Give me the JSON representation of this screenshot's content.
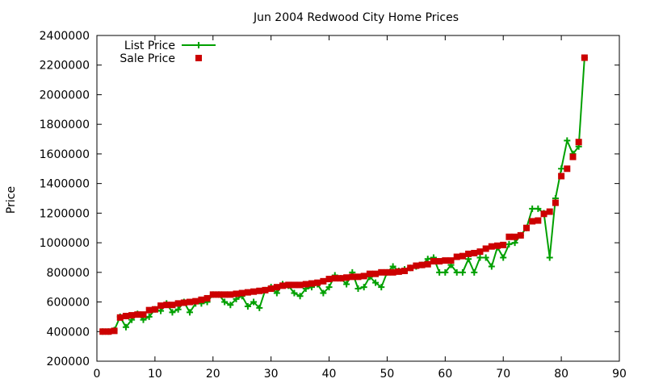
{
  "chart_data": {
    "type": "line",
    "title": "Jun 2004 Redwood City Home Prices",
    "xlabel": "",
    "ylabel": "Price",
    "xlim": [
      0,
      90
    ],
    "ylim": [
      200000,
      2400000
    ],
    "xticks": [
      0,
      10,
      20,
      30,
      40,
      50,
      60,
      70,
      80,
      90
    ],
    "yticks": [
      200000,
      400000,
      600000,
      800000,
      1000000,
      1200000,
      1400000,
      1600000,
      1800000,
      2000000,
      2200000,
      2400000
    ],
    "grid": false,
    "legend_position": "top-left",
    "x": [
      1,
      2,
      3,
      4,
      5,
      6,
      7,
      8,
      9,
      10,
      11,
      12,
      13,
      14,
      15,
      16,
      17,
      18,
      19,
      20,
      21,
      22,
      23,
      24,
      25,
      26,
      27,
      28,
      29,
      30,
      31,
      32,
      33,
      34,
      35,
      36,
      37,
      38,
      39,
      40,
      41,
      42,
      43,
      44,
      45,
      46,
      47,
      48,
      49,
      50,
      51,
      52,
      53,
      54,
      55,
      56,
      57,
      58,
      59,
      60,
      61,
      62,
      63,
      64,
      65,
      66,
      67,
      68,
      69,
      70,
      71,
      72,
      73,
      74,
      75,
      76,
      77,
      78,
      79,
      80,
      81,
      82,
      83,
      84
    ],
    "series": [
      {
        "name": "List Price",
        "color": "#00a000",
        "marker": "plus",
        "values": [
          400000,
          400000,
          410000,
          500000,
          430000,
          480000,
          520000,
          480000,
          500000,
          550000,
          540000,
          590000,
          530000,
          550000,
          600000,
          530000,
          590000,
          590000,
          600000,
          650000,
          650000,
          600000,
          580000,
          620000,
          640000,
          570000,
          600000,
          560000,
          680000,
          700000,
          660000,
          720000,
          710000,
          660000,
          640000,
          690000,
          700000,
          720000,
          660000,
          700000,
          780000,
          760000,
          720000,
          800000,
          690000,
          700000,
          770000,
          730000,
          700000,
          800000,
          840000,
          810000,
          820000,
          830000,
          840000,
          850000,
          890000,
          900000,
          800000,
          800000,
          850000,
          800000,
          800000,
          890000,
          800000,
          900000,
          900000,
          840000,
          970000,
          900000,
          990000,
          1000000,
          1050000,
          1100000,
          1230000,
          1230000,
          1200000,
          900000,
          1300000,
          1500000,
          1690000,
          1600000,
          1650000,
          2250000
        ]
      },
      {
        "name": "Sale Price",
        "color": "#cc0000",
        "marker": "square",
        "values": [
          400000,
          400000,
          405000,
          495000,
          505000,
          510000,
          515000,
          515000,
          545000,
          550000,
          575000,
          580000,
          580000,
          590000,
          595000,
          600000,
          605000,
          615000,
          625000,
          650000,
          650000,
          650000,
          650000,
          655000,
          660000,
          665000,
          670000,
          675000,
          680000,
          690000,
          700000,
          710000,
          715000,
          715000,
          715000,
          720000,
          725000,
          730000,
          740000,
          755000,
          760000,
          760000,
          765000,
          770000,
          770000,
          775000,
          790000,
          790000,
          800000,
          800000,
          800000,
          805000,
          810000,
          830000,
          845000,
          850000,
          855000,
          875000,
          875000,
          880000,
          880000,
          905000,
          910000,
          925000,
          930000,
          940000,
          960000,
          975000,
          980000,
          985000,
          1040000,
          1040000,
          1050000,
          1100000,
          1145000,
          1150000,
          1195000,
          1210000,
          1270000,
          1450000,
          1500000,
          1580000,
          1680000,
          2250000
        ]
      }
    ]
  }
}
